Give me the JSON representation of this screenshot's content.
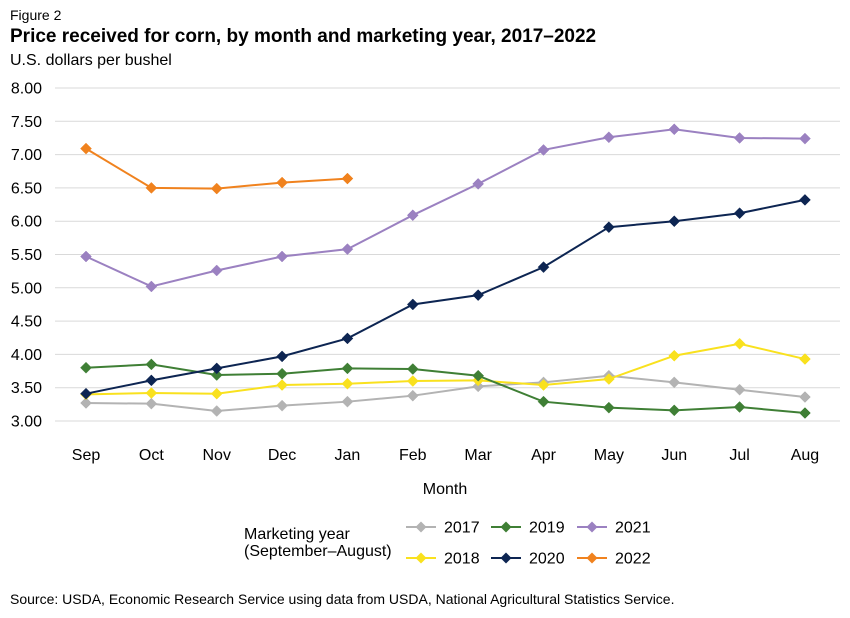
{
  "figure_label": "Figure 2",
  "source": "Source: USDA, Economic Research Service using data from USDA, National Agricultural Statistics Service.",
  "legend_title_lines": [
    "Marketing year",
    "(September–August)"
  ],
  "chart_data": {
    "type": "line",
    "title": "Price received for corn, by month and marketing year, 2017–2022",
    "subtitle": "U.S. dollars per bushel",
    "xlabel": "Month",
    "ylabel": "U.S. dollars per bushel",
    "categories": [
      "Sep",
      "Oct",
      "Nov",
      "Dec",
      "Jan",
      "Feb",
      "Mar",
      "Apr",
      "May",
      "Jun",
      "Jul",
      "Aug"
    ],
    "ylim": [
      3.0,
      8.0
    ],
    "yticks": [
      "8.00",
      "7.50",
      "7.00",
      "6.50",
      "6.00",
      "5.50",
      "5.00",
      "4.50",
      "4.00",
      "3.50",
      "3.00"
    ],
    "grid": true,
    "legend_position": "bottom",
    "series": [
      {
        "name": "2017",
        "color": "#b3b3b3",
        "values": [
          3.27,
          3.26,
          3.15,
          3.23,
          3.29,
          3.38,
          3.52,
          3.58,
          3.68,
          3.58,
          3.47,
          3.36
        ]
      },
      {
        "name": "2018",
        "color": "#f9e11e",
        "values": [
          3.4,
          3.42,
          3.41,
          3.54,
          3.56,
          3.6,
          3.61,
          3.54,
          3.63,
          3.98,
          4.16,
          3.93
        ]
      },
      {
        "name": "2019",
        "color": "#3f7f35",
        "values": [
          3.8,
          3.85,
          3.69,
          3.71,
          3.79,
          3.78,
          3.68,
          3.29,
          3.2,
          3.16,
          3.21,
          3.12
        ]
      },
      {
        "name": "2020",
        "color": "#0d2552",
        "values": [
          3.41,
          3.61,
          3.79,
          3.97,
          4.24,
          4.75,
          4.89,
          5.31,
          5.91,
          6.0,
          6.12,
          6.32
        ]
      },
      {
        "name": "2021",
        "color": "#9b81c1",
        "values": [
          5.47,
          5.02,
          5.26,
          5.47,
          5.58,
          6.09,
          6.56,
          7.07,
          7.26,
          7.38,
          7.25,
          7.24
        ]
      },
      {
        "name": "2022",
        "color": "#f0821e",
        "values": [
          7.09,
          6.5,
          6.49,
          6.58,
          6.64,
          null,
          null,
          null,
          null,
          null,
          null,
          null
        ]
      }
    ]
  }
}
